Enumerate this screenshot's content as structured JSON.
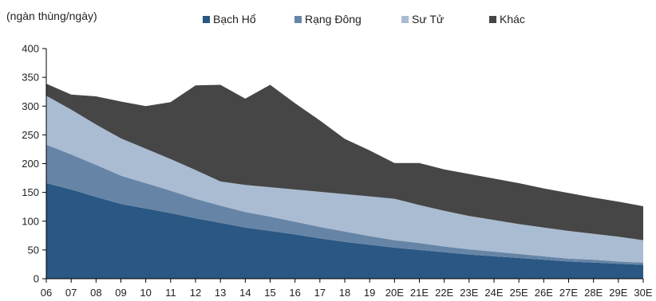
{
  "chart_data": {
    "type": "area",
    "stacked": true,
    "unit_label": "(ngàn thùng/ngày)",
    "categories": [
      "06",
      "07",
      "08",
      "09",
      "10",
      "11",
      "12",
      "13",
      "14",
      "15",
      "16",
      "17",
      "18",
      "19",
      "20E",
      "21E",
      "22E",
      "23E",
      "24E",
      "25E",
      "26E",
      "27E",
      "28E",
      "29E",
      "30E"
    ],
    "ylim": [
      0,
      400
    ],
    "yticks": [
      0,
      50,
      100,
      150,
      200,
      250,
      300,
      350,
      400
    ],
    "legend_position": "top",
    "grid": false,
    "series": [
      {
        "name": "Bạch Hổ",
        "color": "#2a5783",
        "values": [
          166,
          155,
          142,
          130,
          122,
          114,
          105,
          97,
          89,
          83,
          77,
          70,
          64,
          59,
          54,
          50,
          46,
          42,
          39,
          36,
          33,
          30,
          28,
          26,
          24
        ]
      },
      {
        "name": "Rạng Đông",
        "color": "#6685a6",
        "values": [
          67,
          61,
          56,
          49,
          44,
          39,
          34,
          30,
          27,
          25,
          22,
          20,
          18,
          15,
          13,
          12,
          10,
          9,
          8,
          7,
          6,
          5,
          5,
          4,
          4
        ]
      },
      {
        "name": "Sư Tử",
        "color": "#a9bcd2",
        "values": [
          85,
          78,
          70,
          65,
          60,
          55,
          50,
          42,
          47,
          51,
          56,
          61,
          65,
          69,
          72,
          66,
          62,
          58,
          55,
          52,
          50,
          48,
          45,
          43,
          39
        ]
      },
      {
        "name": "Khác",
        "color": "#464646",
        "values": [
          21,
          26,
          49,
          64,
          74,
          99,
          147,
          168,
          150,
          178,
          150,
          124,
          96,
          80,
          62,
          73,
          72,
          73,
          72,
          71,
          68,
          66,
          63,
          61,
          59
        ]
      }
    ]
  }
}
